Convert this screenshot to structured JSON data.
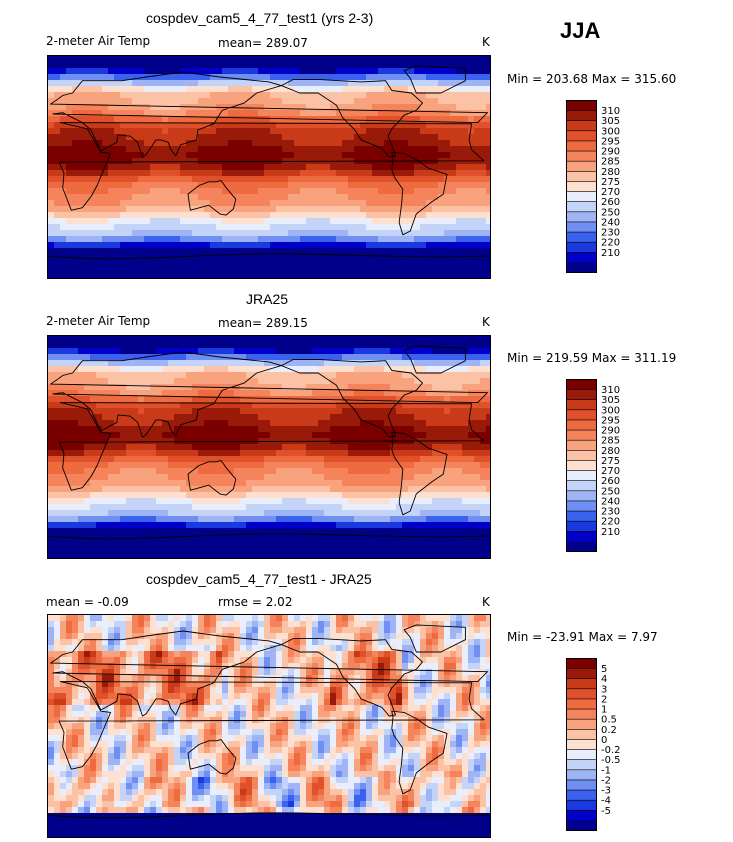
{
  "season": "JJA",
  "colors": {
    "temp_scale": [
      "#00008b",
      "#0000c8",
      "#1a3ae0",
      "#3a62ee",
      "#6f8ff2",
      "#9fb4f5",
      "#c4d3f8",
      "#e8eefb",
      "#fde0d0",
      "#fbc2a6",
      "#f8a27e",
      "#f5845c",
      "#ee6a3f",
      "#e0502a",
      "#c83a18",
      "#9a1a0a",
      "#7a0000"
    ],
    "diff_scale": [
      "#00008b",
      "#0000c8",
      "#1a3ae0",
      "#3a62ee",
      "#6f8ff2",
      "#9fb4f5",
      "#c4d3f8",
      "#e8eefb",
      "#fde0d0",
      "#fbc2a6",
      "#f8a27e",
      "#f5845c",
      "#ee6a3f",
      "#e0502a",
      "#c83a18",
      "#9a1a0a",
      "#7a0000"
    ],
    "land_outline": "#000000"
  },
  "panels": [
    {
      "title": "cospdev_cam5_4_77_test1 (yrs 2-3)",
      "variable": "2-meter Air Temp",
      "stat": "mean=  289.07",
      "units": "K",
      "range_text": "Min = 203.68 Max = 315.60",
      "levels": [
        "310",
        "305",
        "300",
        "295",
        "290",
        "285",
        "280",
        "275",
        "270",
        "260",
        "250",
        "240",
        "230",
        "220",
        "210"
      ]
    },
    {
      "title": "JRA25",
      "variable": "2-meter Air Temp",
      "stat": "mean=  289.15",
      "units": "K",
      "range_text": "Min = 219.59 Max = 311.19",
      "levels": [
        "310",
        "305",
        "300",
        "295",
        "290",
        "285",
        "280",
        "275",
        "270",
        "260",
        "250",
        "240",
        "230",
        "220",
        "210"
      ]
    },
    {
      "title": "cospdev_cam5_4_77_test1 - JRA25",
      "mean_text": "mean =   -0.09",
      "rmse_text": "rmse =    2.02",
      "units": "K",
      "range_text": "Min = -23.91 Max =    7.97",
      "levels": [
        "5",
        "4",
        "3",
        "2",
        "1",
        "0.5",
        "0.2",
        "0",
        "-0.2",
        "-0.5",
        "-1",
        "-2",
        "-3",
        "-4",
        "-5"
      ]
    }
  ],
  "chart_data": [
    {
      "type": "heatmap",
      "title": "cospdev_cam5_4_77_test1 (yrs 2-3)",
      "subtitle": "2-meter Air Temp",
      "mean": 289.07,
      "units": "K",
      "min": 203.68,
      "max": 315.6,
      "levels": [
        210,
        220,
        230,
        240,
        250,
        260,
        270,
        275,
        280,
        285,
        290,
        295,
        300,
        305,
        310
      ]
    },
    {
      "type": "heatmap",
      "title": "JRA25",
      "subtitle": "2-meter Air Temp",
      "mean": 289.15,
      "units": "K",
      "min": 219.59,
      "max": 311.19,
      "levels": [
        210,
        220,
        230,
        240,
        250,
        260,
        270,
        275,
        280,
        285,
        290,
        295,
        300,
        305,
        310
      ]
    },
    {
      "type": "heatmap",
      "title": "cospdev_cam5_4_77_test1 - JRA25",
      "mean": -0.09,
      "rmse": 2.02,
      "units": "K",
      "min": -23.91,
      "max": 7.97,
      "levels": [
        -5,
        -4,
        -3,
        -2,
        -1,
        -0.5,
        -0.2,
        0,
        0.2,
        0.5,
        1,
        2,
        3,
        4,
        5
      ]
    }
  ]
}
